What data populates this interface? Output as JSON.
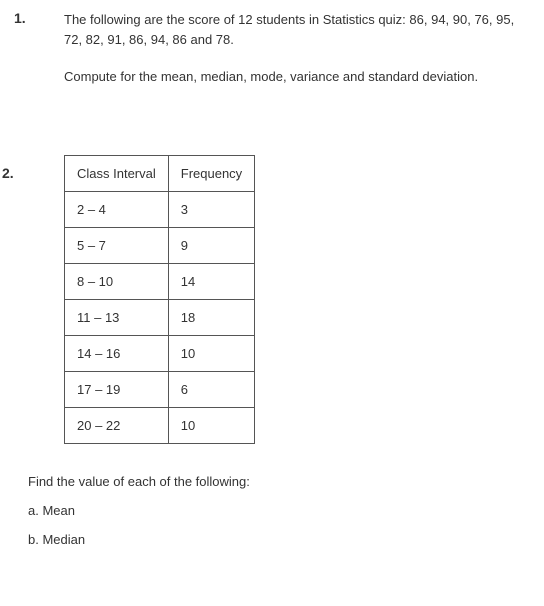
{
  "q1": {
    "number": "1.",
    "text1": "The following are the score of 12 students in Statistics quiz: 86, 94, 90, 76, 95, 72, 82, 91, 86, 94, 86 and 78.",
    "text2": "Compute for the mean, median, mode, variance and standard deviation."
  },
  "q2": {
    "number": "2.",
    "table": {
      "header_col1": "Class Interval",
      "header_col2": "Frequency",
      "rows": [
        {
          "interval": "2 – 4",
          "freq": "3"
        },
        {
          "interval": "5 – 7",
          "freq": "9"
        },
        {
          "interval": "8 – 10",
          "freq": "14"
        },
        {
          "interval": "11 – 13",
          "freq": "18"
        },
        {
          "interval": "14 – 16",
          "freq": "10"
        },
        {
          "interval": "17 – 19",
          "freq": "6"
        },
        {
          "interval": "20 – 22",
          "freq": "10"
        }
      ]
    },
    "prompt": "Find the value of each of the following:",
    "part_a": "a. Mean",
    "part_b": "b. Median"
  }
}
